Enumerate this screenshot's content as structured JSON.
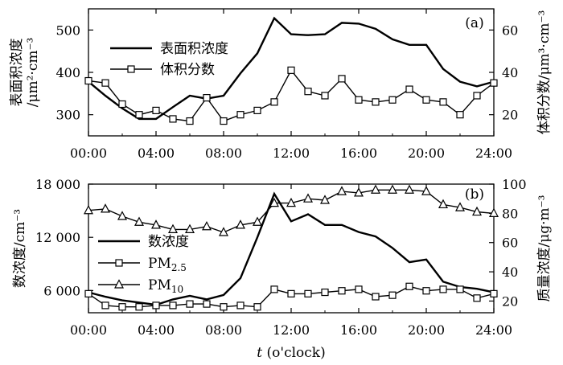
{
  "chart_data": [
    {
      "type": "line",
      "panel_label": "(a)",
      "x_ticks": [
        "00:00",
        "04:00",
        "08:00",
        "12:00",
        "16:00",
        "20:00",
        "24:00"
      ],
      "x_range": [
        0,
        24
      ],
      "left_axis": {
        "label_line1": "表面积浓度",
        "label_line2": "/μm²·cm⁻³",
        "range": [
          250,
          550
        ],
        "ticks": [
          300,
          400,
          500
        ]
      },
      "right_axis": {
        "label": "体积分数/μm³·cm⁻³",
        "range": [
          10,
          70
        ],
        "ticks": [
          20,
          40,
          60
        ]
      },
      "legend_position": "upper-left",
      "series": [
        {
          "name": "表面积浓度",
          "axis": "left",
          "marker": "none",
          "x": [
            0,
            1,
            2,
            3,
            4,
            5,
            6,
            7,
            8,
            9,
            10,
            11,
            12,
            13,
            14,
            15,
            16,
            17,
            18,
            19,
            20,
            21,
            22,
            23,
            24
          ],
          "values": [
            378,
            345,
            315,
            290,
            290,
            318,
            345,
            338,
            345,
            398,
            445,
            528,
            490,
            488,
            490,
            517,
            515,
            503,
            478,
            465,
            465,
            408,
            378,
            367,
            378
          ]
        },
        {
          "name": "体积分数",
          "axis": "right",
          "marker": "square",
          "x": [
            0,
            1,
            2,
            3,
            4,
            5,
            6,
            7,
            8,
            9,
            10,
            11,
            12,
            13,
            14,
            15,
            16,
            17,
            18,
            19,
            20,
            21,
            22,
            23,
            24
          ],
          "values": [
            36,
            35,
            25,
            20,
            22,
            18,
            17,
            28,
            17,
            20,
            22,
            26,
            41,
            31,
            29,
            37,
            27,
            26,
            27,
            32,
            27,
            26,
            20,
            29,
            35
          ]
        }
      ]
    },
    {
      "type": "line",
      "panel_label": "(b)",
      "x_ticks": [
        "00:00",
        "04:00",
        "08:00",
        "12:00",
        "16:00",
        "20:00",
        "24:00"
      ],
      "x_range": [
        0,
        24
      ],
      "x_label_var": "t",
      "x_label_unit": " (o'clock)",
      "left_axis": {
        "label": "数浓度/cm⁻³",
        "range": [
          3500,
          18000
        ],
        "ticks": [
          "6 000",
          "12 000",
          "18 000"
        ],
        "tick_values": [
          6000,
          12000,
          18000
        ]
      },
      "right_axis": {
        "label": "质量浓度/μg·m⁻³",
        "range": [
          12,
          100
        ],
        "ticks": [
          20,
          40,
          60,
          80,
          100
        ]
      },
      "legend_position": "lower-left",
      "series": [
        {
          "name": "数浓度",
          "axis": "left",
          "marker": "none",
          "x": [
            0,
            1,
            2,
            3,
            4,
            5,
            6,
            7,
            8,
            9,
            10,
            11,
            12,
            13,
            14,
            15,
            16,
            17,
            18,
            19,
            20,
            21,
            22,
            23,
            24
          ],
          "values": [
            5800,
            5300,
            4900,
            4650,
            4400,
            5000,
            5400,
            5000,
            5500,
            7400,
            12000,
            16900,
            13800,
            14600,
            13400,
            13400,
            12600,
            12100,
            10800,
            9200,
            9500,
            7000,
            6400,
            6200,
            5800
          ]
        },
        {
          "name": "PM",
          "name_sub": "2.5",
          "axis": "right",
          "marker": "square",
          "x": [
            0,
            1,
            2,
            3,
            4,
            5,
            6,
            7,
            8,
            9,
            10,
            11,
            12,
            13,
            14,
            15,
            16,
            17,
            18,
            19,
            20,
            21,
            22,
            23,
            24
          ],
          "values": [
            25,
            17,
            16,
            16,
            17,
            17,
            18,
            18,
            16,
            17,
            16,
            28,
            25,
            25,
            26,
            27,
            28,
            23,
            24,
            30,
            27,
            28,
            28,
            22,
            25
          ]
        },
        {
          "name": "PM",
          "name_sub": "10",
          "axis": "right",
          "marker": "triangle",
          "x": [
            0,
            1,
            2,
            3,
            4,
            5,
            6,
            7,
            8,
            9,
            10,
            11,
            12,
            13,
            14,
            15,
            16,
            17,
            18,
            19,
            20,
            21,
            22,
            23,
            24
          ],
          "values": [
            82,
            83,
            78,
            74,
            72,
            69,
            69,
            71,
            67,
            72,
            74,
            87,
            87,
            90,
            89,
            95,
            94,
            96,
            96,
            96,
            95,
            86,
            84,
            81,
            80
          ]
        }
      ]
    }
  ]
}
